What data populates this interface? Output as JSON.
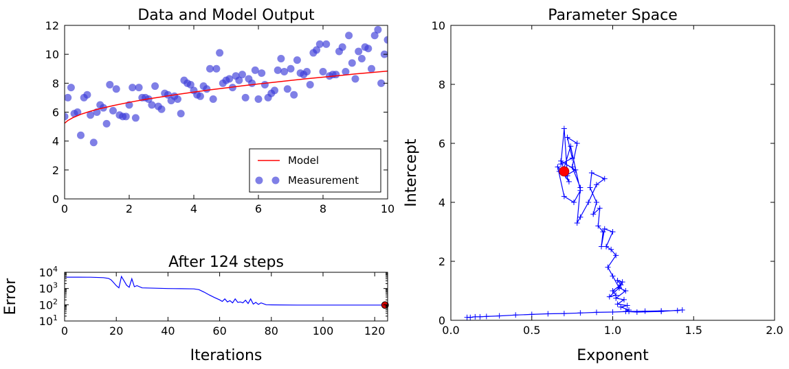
{
  "chart_data": [
    {
      "id": "data-model",
      "type": "scatter",
      "title": "Data and Model Output",
      "xlabel": "",
      "ylabel": "",
      "xlim": [
        0,
        10
      ],
      "ylim": [
        0,
        12
      ],
      "x_ticks": [
        0,
        2,
        4,
        6,
        8,
        10
      ],
      "y_ticks": [
        0,
        2,
        4,
        6,
        8,
        10,
        12
      ],
      "legend": {
        "position": "lower-right",
        "entries": [
          "Model",
          "Measurement"
        ]
      },
      "series": [
        {
          "name": "Model",
          "type": "line",
          "color": "#ff0000",
          "x": [
            0,
            0.1,
            0.25,
            0.5,
            0.75,
            1,
            1.5,
            2,
            2.5,
            3,
            3.5,
            4,
            4.5,
            5,
            5.5,
            6,
            6.5,
            7,
            7.5,
            8,
            8.5,
            9,
            9.5,
            10
          ],
          "y": [
            5.23,
            5.42,
            5.61,
            5.85,
            6.03,
            6.19,
            6.45,
            6.68,
            6.88,
            7.06,
            7.23,
            7.39,
            7.54,
            7.68,
            7.82,
            7.95,
            8.07,
            8.19,
            8.31,
            8.42,
            8.53,
            8.64,
            8.74,
            8.84
          ]
        },
        {
          "name": "Measurement",
          "type": "scatter",
          "color": "#3b3bd9",
          "x": [
            0.0,
            0.1,
            0.2,
            0.3,
            0.4,
            0.5,
            0.6,
            0.7,
            0.8,
            0.9,
            1.0,
            1.1,
            1.2,
            1.3,
            1.4,
            1.5,
            1.6,
            1.7,
            1.8,
            1.9,
            2.0,
            2.1,
            2.2,
            2.3,
            2.4,
            2.5,
            2.6,
            2.7,
            2.8,
            2.9,
            3.0,
            3.1,
            3.2,
            3.3,
            3.4,
            3.5,
            3.6,
            3.7,
            3.8,
            3.9,
            4.0,
            4.1,
            4.2,
            4.3,
            4.4,
            4.5,
            4.6,
            4.7,
            4.8,
            4.9,
            5.0,
            5.1,
            5.2,
            5.3,
            5.4,
            5.5,
            5.6,
            5.7,
            5.8,
            5.9,
            6.0,
            6.1,
            6.2,
            6.3,
            6.4,
            6.5,
            6.6,
            6.7,
            6.8,
            6.9,
            7.0,
            7.1,
            7.2,
            7.3,
            7.4,
            7.5,
            7.6,
            7.7,
            7.8,
            7.9,
            8.0,
            8.1,
            8.2,
            8.3,
            8.4,
            8.5,
            8.6,
            8.7,
            8.8,
            8.9,
            9.0,
            9.1,
            9.2,
            9.3,
            9.4,
            9.5,
            9.6,
            9.7,
            9.8,
            9.9,
            10.0
          ],
          "y": [
            5.7,
            7.0,
            7.7,
            5.9,
            6.0,
            4.4,
            7.0,
            7.2,
            5.8,
            3.9,
            6.0,
            6.5,
            6.3,
            5.2,
            7.9,
            6.1,
            7.6,
            5.8,
            5.7,
            5.7,
            6.5,
            7.7,
            5.6,
            7.7,
            7.0,
            7.0,
            6.9,
            6.5,
            7.8,
            6.4,
            6.2,
            7.3,
            7.2,
            6.8,
            7.1,
            6.9,
            5.9,
            8.2,
            8.0,
            7.9,
            7.5,
            7.2,
            7.1,
            7.8,
            7.6,
            9.0,
            6.9,
            9.0,
            10.1,
            8.0,
            8.2,
            8.3,
            7.7,
            8.5,
            8.2,
            8.6,
            7.0,
            8.3,
            8.0,
            8.9,
            6.9,
            8.7,
            7.9,
            7.0,
            7.3,
            7.5,
            8.9,
            9.7,
            8.8,
            7.6,
            9.0,
            7.2,
            9.6,
            8.7,
            8.6,
            8.8,
            7.9,
            10.1,
            10.3,
            10.7,
            8.8,
            10.7,
            8.5,
            8.6,
            8.6,
            10.2,
            10.5,
            8.8,
            11.3,
            9.4,
            8.3,
            10.2,
            9.7,
            10.5,
            10.4,
            9.0,
            11.3,
            11.7,
            8.0,
            10.0,
            11.0
          ]
        }
      ]
    },
    {
      "id": "error",
      "type": "line",
      "title": "After 124 steps",
      "xlabel": "Iterations",
      "ylabel": "Error",
      "xlim": [
        0,
        125
      ],
      "ylim": [
        10,
        10000
      ],
      "y_scale": "log",
      "x_ticks": [
        0,
        20,
        40,
        60,
        80,
        100,
        120
      ],
      "y_ticks": [
        {
          "value": 10,
          "base": "10",
          "exp": "1"
        },
        {
          "value": 100,
          "base": "10",
          "exp": "2"
        },
        {
          "value": 1000,
          "base": "10",
          "exp": "3"
        },
        {
          "value": 10000,
          "base": "10",
          "exp": "4"
        }
      ],
      "series": [
        {
          "type": "line",
          "color": "#0000ff",
          "x": [
            0,
            5,
            10,
            15,
            17,
            18,
            19,
            20,
            21,
            22,
            23,
            24,
            25,
            26,
            27,
            28,
            30,
            35,
            40,
            45,
            50,
            52,
            54,
            56,
            58,
            60,
            61,
            62,
            63,
            64,
            65,
            66,
            67,
            68,
            69,
            70,
            71,
            72,
            73,
            74,
            75,
            76,
            78,
            80,
            90,
            100,
            110,
            120,
            124
          ],
          "y": [
            5000,
            5000,
            4950,
            4700,
            4200,
            3400,
            2300,
            1500,
            1100,
            5500,
            3000,
            1600,
            1200,
            4000,
            1300,
            1500,
            1100,
            1050,
            1000,
            980,
            950,
            850,
            600,
            400,
            280,
            200,
            160,
            230,
            150,
            180,
            130,
            230,
            140,
            150,
            130,
            190,
            120,
            230,
            110,
            140,
            105,
            130,
            100,
            98,
            96,
            96,
            96,
            96,
            96
          ]
        }
      ],
      "marker": {
        "x": 124,
        "y": 96,
        "color": "#cc0000"
      }
    },
    {
      "id": "parameter-space",
      "type": "line",
      "title": "Parameter Space",
      "xlabel": "Exponent",
      "ylabel": "Intercept",
      "xlim": [
        0,
        2
      ],
      "ylim": [
        0,
        10
      ],
      "x_ticks": [
        "0.0",
        "0.5",
        "1.0",
        "1.5",
        "2.0"
      ],
      "y_ticks": [
        0,
        2,
        4,
        6,
        8,
        10
      ],
      "series": [
        {
          "type": "line",
          "color": "#0000ff",
          "marker": "+",
          "x": [
            0.1,
            0.12,
            0.15,
            0.18,
            0.22,
            0.3,
            0.4,
            0.5,
            0.6,
            0.7,
            0.8,
            0.9,
            1.0,
            1.1,
            1.2,
            1.3,
            1.4,
            1.43,
            1.3,
            1.15,
            1.08,
            1.1,
            1.05,
            1.09,
            1.03,
            1.07,
            1.02,
            1.08,
            1.04,
            1.06,
            1.03,
            1.05,
            1.0,
            1.02,
            0.98,
            1.04,
            1.0,
            0.97,
            1.02,
            0.99,
            0.96,
            1.0,
            0.95,
            0.93,
            0.94,
            0.91,
            0.92,
            0.88,
            0.9,
            0.86,
            0.87,
            0.95,
            0.9,
            0.85,
            0.8,
            0.78,
            0.8,
            0.75,
            0.78,
            0.72,
            0.75,
            0.68,
            0.7,
            0.72,
            0.66,
            0.7,
            0.76,
            0.8,
            0.74,
            0.69,
            0.73,
            0.68,
            0.77,
            0.71,
            0.67
          ],
          "y": [
            0.1,
            0.1,
            0.12,
            0.12,
            0.13,
            0.15,
            0.18,
            0.2,
            0.22,
            0.23,
            0.25,
            0.27,
            0.28,
            0.3,
            0.31,
            0.32,
            0.33,
            0.35,
            0.3,
            0.28,
            0.3,
            0.35,
            0.45,
            0.5,
            0.55,
            0.7,
            0.75,
            1.0,
            1.1,
            1.3,
            1.35,
            1.2,
            1.0,
            0.85,
            0.8,
            1.1,
            1.5,
            1.8,
            2.2,
            2.4,
            2.5,
            3.0,
            3.1,
            2.5,
            3.0,
            3.2,
            3.8,
            3.6,
            4.0,
            4.5,
            5.0,
            4.8,
            4.6,
            4.0,
            3.5,
            3.3,
            4.5,
            5.2,
            6.0,
            6.2,
            5.5,
            5.3,
            6.5,
            4.9,
            5.2,
            4.2,
            4.0,
            4.4,
            5.9,
            5.0,
            4.7,
            5.4,
            5.1,
            4.9,
            5.05
          ]
        }
      ],
      "marker": {
        "x": 0.7,
        "y": 5.05,
        "color": "#ff0000"
      }
    }
  ]
}
